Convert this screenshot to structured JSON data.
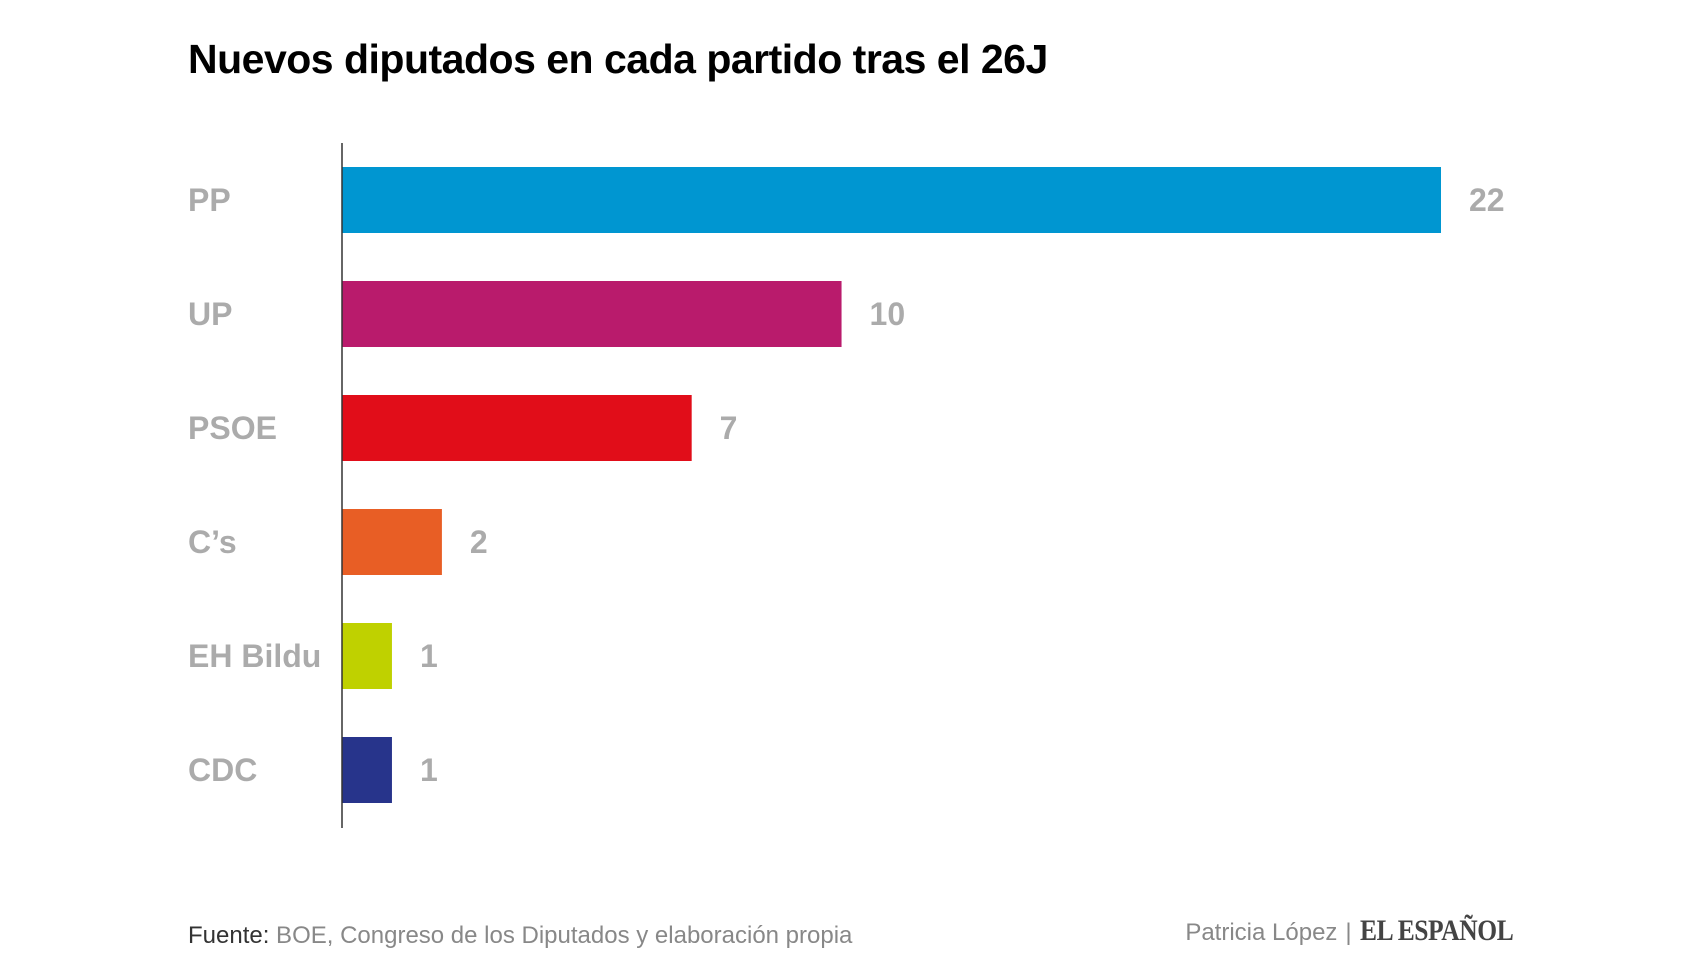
{
  "chart_data": {
    "type": "bar",
    "orientation": "horizontal",
    "title": "Nuevos diputados en cada partido tras el 26J",
    "xlabel": "",
    "ylabel": "",
    "grid": false,
    "categories": [
      "PP",
      "UP",
      "PSOE",
      "C’s",
      "EH Bildu",
      "CDC"
    ],
    "values": [
      22,
      10,
      7,
      2,
      1,
      1
    ],
    "colors": [
      "#0096d1",
      "#b91b6c",
      "#e10d19",
      "#e85e25",
      "#bfd100",
      "#27348b"
    ],
    "data_labels": [
      "22",
      "10",
      "7",
      "2",
      "1",
      "1"
    ],
    "xlim": [
      0,
      22
    ]
  },
  "footer": {
    "source_prefix": "Fuente:",
    "source_text": " BOE, Congreso de los Diputados y elaboración propia",
    "author": "Patricia López",
    "separator": "|",
    "brand": "EL ESPAÑOL"
  },
  "colors": {
    "label_gray": "#ababab",
    "axis": "#333333"
  }
}
